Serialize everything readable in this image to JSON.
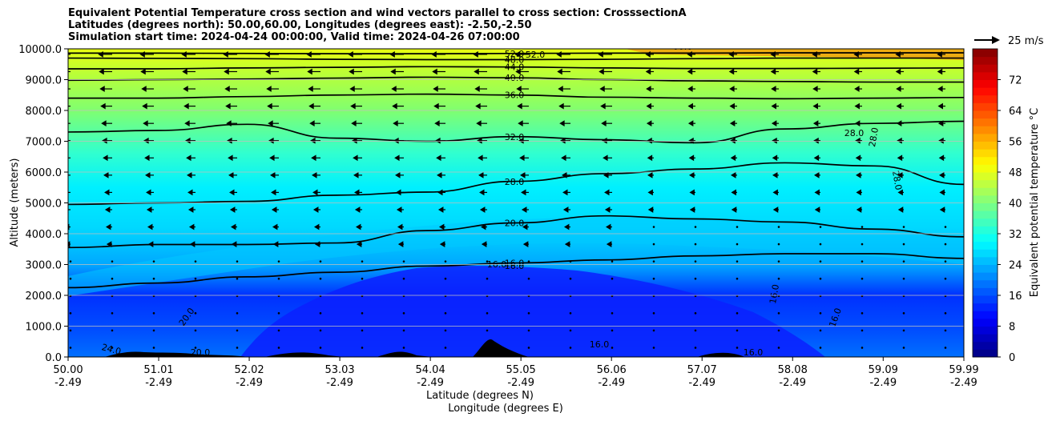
{
  "chart_data": {
    "type": "heatmap",
    "title_lines": [
      "Equivalent Potential Temperature cross section and wind vectors parallel to cross section: CrosssectionA",
      "Latitudes (degrees north): 50.00,60.00, Longitudes (degrees east): -2.50,-2.50",
      "Simulation start time: 2024-04-24 00:00:00, Valid time: 2024-04-26 07:00:00"
    ],
    "xlabel": "Latitude (degrees N)",
    "xlabel2": "Longitude (degrees E)",
    "ylabel": "Altitude (meters)",
    "x_ticks": [
      {
        "lat": "50.00",
        "lon": "-2.49",
        "v": 50.0
      },
      {
        "lat": "51.01",
        "lon": "-2.49",
        "v": 51.01
      },
      {
        "lat": "52.02",
        "lon": "-2.49",
        "v": 52.02
      },
      {
        "lat": "53.03",
        "lon": "-2.49",
        "v": 53.03
      },
      {
        "lat": "54.04",
        "lon": "-2.49",
        "v": 54.04
      },
      {
        "lat": "55.05",
        "lon": "-2.49",
        "v": 55.05
      },
      {
        "lat": "56.06",
        "lon": "-2.49",
        "v": 56.06
      },
      {
        "lat": "57.07",
        "lon": "-2.49",
        "v": 57.07
      },
      {
        "lat": "58.08",
        "lon": "-2.49",
        "v": 58.08
      },
      {
        "lat": "59.09",
        "lon": "-2.49",
        "v": 59.09
      },
      {
        "lat": "59.99",
        "lon": "-2.49",
        "v": 59.99
      }
    ],
    "xlim": [
      50.0,
      59.99
    ],
    "y_ticks": [
      "0.0",
      "1000.0",
      "2000.0",
      "3000.0",
      "4000.0",
      "5000.0",
      "6000.0",
      "7000.0",
      "8000.0",
      "9000.0",
      "10000.0"
    ],
    "ylim": [
      0,
      10000
    ],
    "grid": "horizontal",
    "colorbar": {
      "label": "Equivalent potential temperature $^\\circ$C",
      "label_display": "Equivalent potential temperature °C",
      "ticks": [
        0,
        8,
        16,
        24,
        32,
        40,
        48,
        56,
        64,
        72
      ],
      "range": [
        0,
        80
      ],
      "colormap": "jet"
    },
    "quiver_key": "25 m/s",
    "contours": [
      {
        "level": 52,
        "label": "52.0",
        "y": [
          9860,
          9860,
          9850,
          9840,
          9840,
          9850,
          9860,
          9860,
          9870,
          9870,
          9870
        ]
      },
      {
        "level": 48,
        "label": "48.0",
        "y": [
          9700,
          9690,
          9680,
          9660,
          9650,
          9650,
          9660,
          9680,
          9700,
          9700,
          9700
        ]
      },
      {
        "level": 44,
        "label": "44.0",
        "y": [
          9350,
          9350,
          9380,
          9400,
          9420,
          9410,
          9380,
          9360,
          9360,
          9370,
          9380
        ]
      },
      {
        "level": 40,
        "label": "40.0",
        "y": [
          8980,
          9000,
          9020,
          9050,
          9080,
          9060,
          9000,
          8960,
          8940,
          8920,
          8920
        ]
      },
      {
        "level": 36,
        "label": "36.0",
        "y": [
          8400,
          8400,
          8450,
          8500,
          8530,
          8500,
          8430,
          8400,
          8380,
          8400,
          8420
        ]
      },
      {
        "level": 32,
        "label": "32.0",
        "y": [
          7300,
          7350,
          7550,
          7100,
          7000,
          7150,
          7050,
          6950,
          7400,
          7580,
          7650
        ]
      },
      {
        "level": 28,
        "label": "28.0",
        "y": [
          4950,
          5000,
          5050,
          5250,
          5350,
          5700,
          5950,
          6100,
          6300,
          6200,
          5600
        ]
      },
      {
        "level": 20,
        "label": "20.0",
        "y": [
          3550,
          3650,
          3650,
          3700,
          4100,
          4350,
          4580,
          4480,
          4380,
          4150,
          3900
        ]
      },
      {
        "level": 16,
        "label": "16.0",
        "y": [
          2250,
          2400,
          2600,
          2750,
          2950,
          3050,
          3150,
          3280,
          3350,
          3350,
          3200
        ]
      }
    ],
    "contour_labels_extra": [
      "16.0",
      "16.0",
      "16.0",
      "16.0",
      "16.0",
      "20.0",
      "20.0",
      "24.0",
      "28.0",
      "28.0",
      "28.0",
      "16.0",
      "60.0",
      "52.0"
    ],
    "wind_note": "vectors mostly pointing south (leftward) aloft, near zero at low levels"
  }
}
